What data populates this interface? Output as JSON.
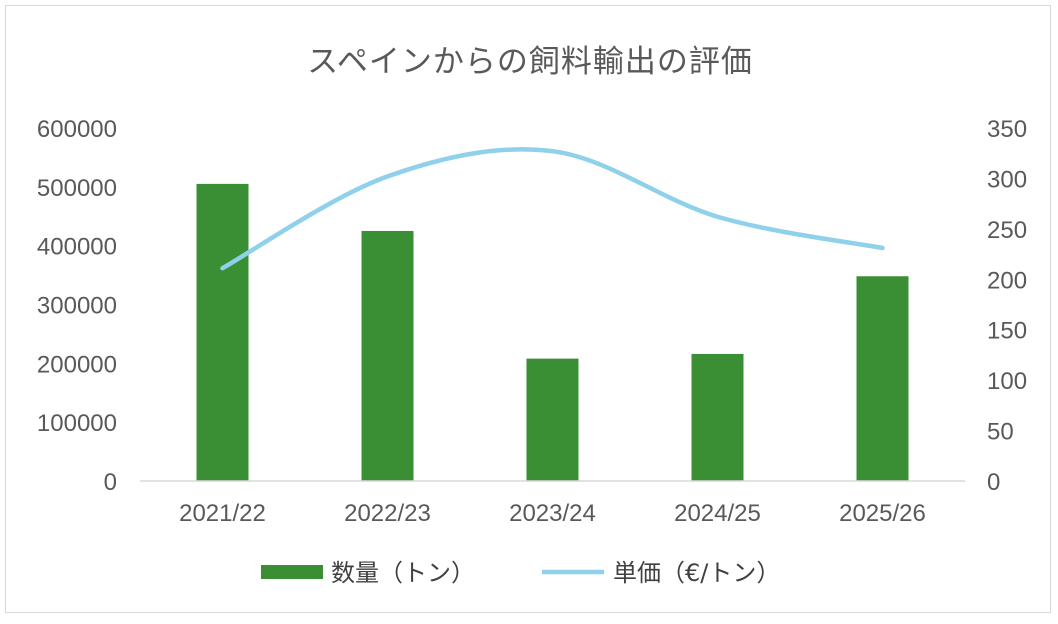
{
  "chart_data": {
    "type": "bar",
    "title": "スペインからの飼料輸出の評価",
    "categories": [
      "2021/22",
      "2022/23",
      "2023/24",
      "2024/25",
      "2025/26"
    ],
    "series": [
      {
        "name": "数量（トン）",
        "type": "bar",
        "axis": "left",
        "color": "#3a8f35",
        "values": [
          505000,
          425000,
          208000,
          216000,
          348000
        ]
      },
      {
        "name": "単価（€/トン）",
        "type": "line",
        "axis": "right",
        "color": "#8fd0ea",
        "values": [
          211,
          302,
          327,
          262,
          231
        ]
      }
    ],
    "ylim": [
      0,
      600000
    ],
    "y_ticks": [
      "0",
      "100000",
      "200000",
      "300000",
      "400000",
      "500000",
      "600000"
    ],
    "y2lim": [
      0,
      350
    ],
    "y2_ticks": [
      "0",
      "50",
      "100",
      "150",
      "200",
      "250",
      "300",
      "350"
    ],
    "grid": false,
    "legend_position": "bottom"
  }
}
